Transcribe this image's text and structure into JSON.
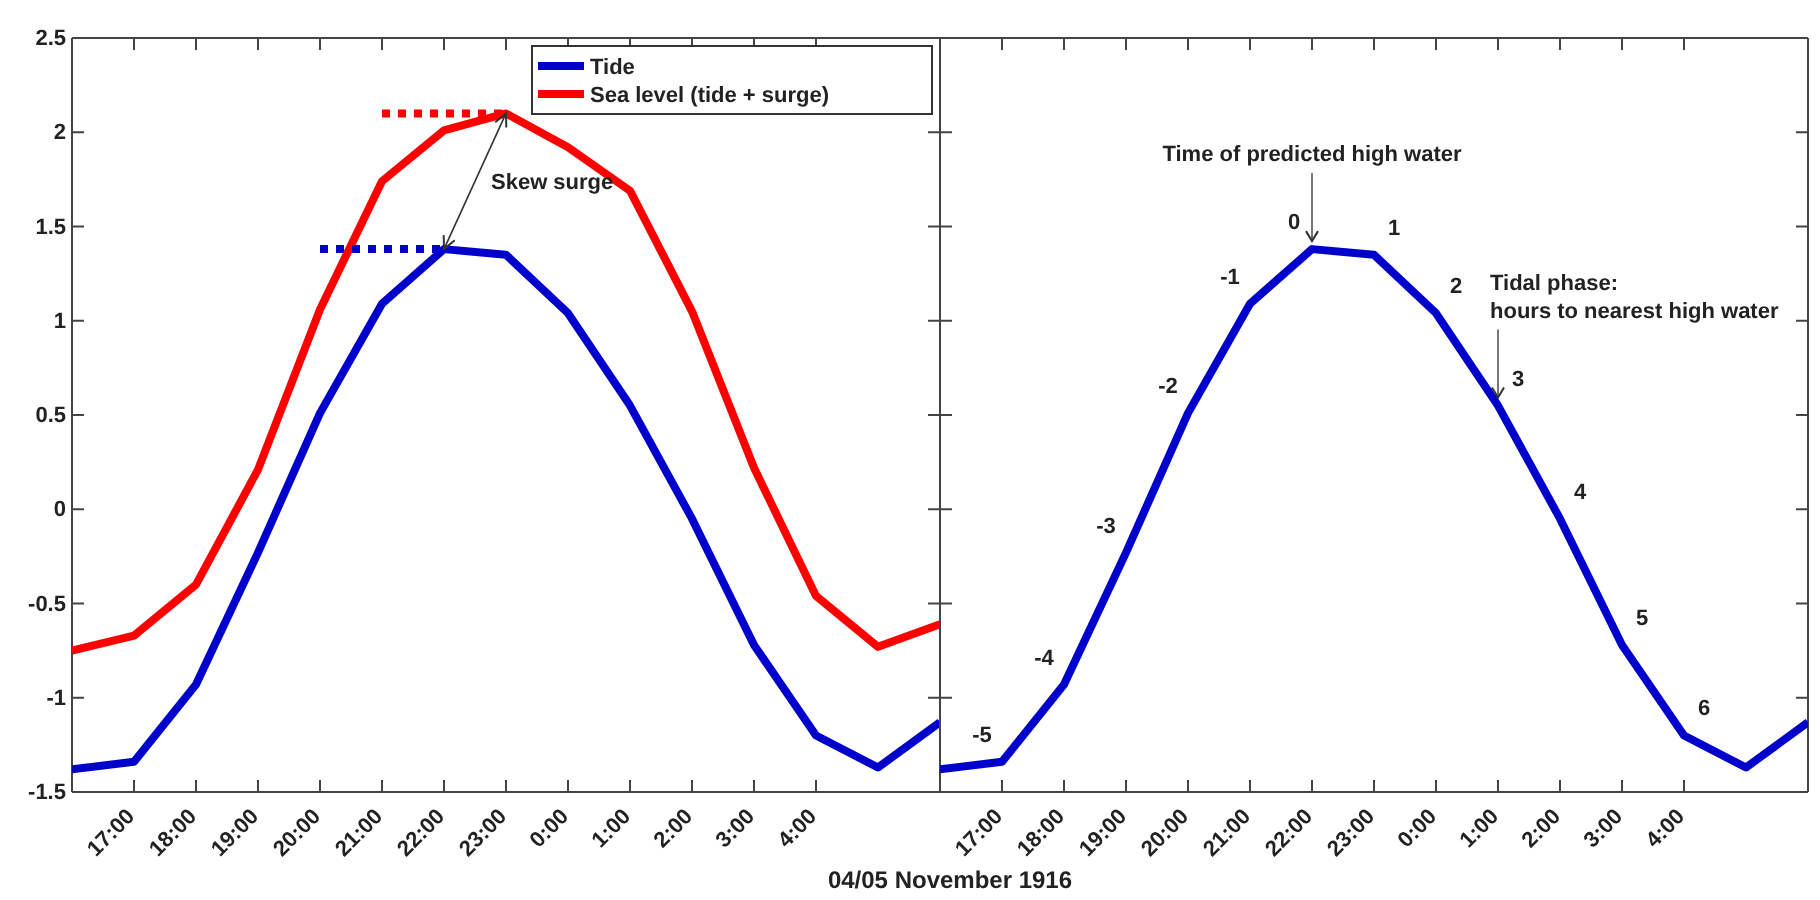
{
  "chart_data": [
    {
      "type": "line",
      "xlabel": "04/05 November 1916",
      "x": [
        "1916-11-04T16:00",
        "1916-11-04T17:00",
        "1916-11-04T18:00",
        "1916-11-04T19:00",
        "1916-11-04T20:00",
        "1916-11-04T21:00",
        "1916-11-04T22:00",
        "1916-11-04T23:00",
        "1916-11-05T00:00",
        "1916-11-05T01:00",
        "1916-11-05T02:00",
        "1916-11-05T03:00",
        "1916-11-05T04:00",
        "1916-11-05T05:00",
        "1916-11-05T06:00"
      ],
      "xlim": [
        "1916-11-04T16:00",
        "1916-11-05T06:00"
      ],
      "ylim": [
        -1.5,
        2.5
      ],
      "xticks": [
        {
          "value": "1916-11-04T17:00",
          "label": "17:00"
        },
        {
          "value": "1916-11-04T18:00",
          "label": "18:00"
        },
        {
          "value": "1916-11-04T19:00",
          "label": "19:00"
        },
        {
          "value": "1916-11-04T20:00",
          "label": "20:00"
        },
        {
          "value": "1916-11-04T21:00",
          "label": "21:00"
        },
        {
          "value": "1916-11-04T22:00",
          "label": "22:00"
        },
        {
          "value": "1916-11-04T23:00",
          "label": "23:00"
        },
        {
          "value": "1916-11-05T00:00",
          "label": "0:00"
        },
        {
          "value": "1916-11-05T01:00",
          "label": "1:00"
        },
        {
          "value": "1916-11-05T02:00",
          "label": "2:00"
        },
        {
          "value": "1916-11-05T03:00",
          "label": "3:00"
        },
        {
          "value": "1916-11-05T04:00",
          "label": "4:00"
        }
      ],
      "yticks": [
        -1.5,
        -1,
        -0.5,
        0,
        0.5,
        1,
        1.5,
        2,
        2.5
      ],
      "grid": false,
      "legend": "top right",
      "line_style": "solid",
      "marker": "none",
      "series": [
        {
          "name": "Tide",
          "color": "#0000cc",
          "values": [
            -1.38,
            -1.34,
            -0.93,
            -0.23,
            0.51,
            1.09,
            1.38,
            1.35,
            1.04,
            0.55,
            -0.05,
            -0.72,
            -1.2,
            -1.37,
            -1.13
          ]
        },
        {
          "name": "Sea level (tide + surge)",
          "color": "#ff0000",
          "values": [
            -0.75,
            -0.67,
            -0.4,
            0.21,
            1.06,
            1.74,
            2.01,
            2.1,
            1.92,
            1.69,
            1.05,
            0.22,
            -0.46,
            -0.73,
            -0.61
          ]
        },
        {
          "type": "line",
          "color": "#0000cc",
          "line_style": "dotted",
          "x": [
            "1916-11-04T20:00",
            "1916-11-04T22:00"
          ],
          "values": [
            1.38,
            1.38
          ]
        },
        {
          "type": "line",
          "color": "#ff0000",
          "line_style": "dotted",
          "x": [
            "1916-11-04T21:00",
            "1916-11-04T23:00"
          ],
          "values": [
            2.1,
            2.1
          ]
        }
      ],
      "annotations": [
        "Skew surge"
      ]
    },
    {
      "type": "line",
      "x": [
        "1916-11-04T16:00",
        "1916-11-04T17:00",
        "1916-11-04T18:00",
        "1916-11-04T19:00",
        "1916-11-04T20:00",
        "1916-11-04T21:00",
        "1916-11-04T22:00",
        "1916-11-04T23:00",
        "1916-11-05T00:00",
        "1916-11-05T01:00",
        "1916-11-05T02:00",
        "1916-11-05T03:00",
        "1916-11-05T04:00",
        "1916-11-05T05:00",
        "1916-11-05T06:00"
      ],
      "xlim": [
        "1916-11-04T16:00",
        "1916-11-05T06:00"
      ],
      "ylim": [
        -1.5,
        2.5
      ],
      "xticks": [
        {
          "value": "1916-11-04T17:00",
          "label": "17:00"
        },
        {
          "value": "1916-11-04T18:00",
          "label": "18:00"
        },
        {
          "value": "1916-11-04T19:00",
          "label": "19:00"
        },
        {
          "value": "1916-11-04T20:00",
          "label": "20:00"
        },
        {
          "value": "1916-11-04T21:00",
          "label": "21:00"
        },
        {
          "value": "1916-11-04T22:00",
          "label": "22:00"
        },
        {
          "value": "1916-11-04T23:00",
          "label": "23:00"
        },
        {
          "value": "1916-11-05T00:00",
          "label": "0:00"
        },
        {
          "value": "1916-11-05T01:00",
          "label": "1:00"
        },
        {
          "value": "1916-11-05T02:00",
          "label": "2:00"
        },
        {
          "value": "1916-11-05T03:00",
          "label": "3:00"
        },
        {
          "value": "1916-11-05T04:00",
          "label": "4:00"
        }
      ],
      "yticks": [
        -1.5,
        -1,
        -0.5,
        0,
        0.5,
        1,
        1.5,
        2,
        2.5
      ],
      "tick_labels": "x",
      "grid": false,
      "line_style": "solid",
      "marker": "none",
      "series": [
        {
          "color": "#0000cc",
          "values": [
            -1.38,
            -1.34,
            -0.93,
            -0.23,
            0.51,
            1.09,
            1.38,
            1.35,
            1.04,
            0.55,
            -0.05,
            -0.72,
            -1.2,
            -1.37,
            -1.13
          ]
        }
      ],
      "annotations": [
        {
          "text": "Time of predicted high water",
          "x": "1916-11-04T22:00",
          "y": 1.38
        },
        {
          "text": "Tidal phase:\nhours to nearest high water",
          "x": "1916-11-05T01:00",
          "y": 0.55
        },
        {
          "text": "-5",
          "x": "1916-11-04T17:00",
          "y": -1.34
        },
        {
          "text": "-4",
          "x": "1916-11-04T18:00",
          "y": -0.93
        },
        {
          "text": "-3",
          "x": "1916-11-04T19:00",
          "y": -0.23
        },
        {
          "text": "-2",
          "x": "1916-11-04T20:00",
          "y": 0.51
        },
        {
          "text": "-1",
          "x": "1916-11-04T21:00",
          "y": 1.09
        },
        {
          "text": "0",
          "x": "1916-11-04T22:00",
          "y": 1.38
        },
        {
          "text": "1",
          "x": "1916-11-04T23:00",
          "y": 1.35
        },
        {
          "text": "2",
          "x": "1916-11-05T00:00",
          "y": 1.04
        },
        {
          "text": "3",
          "x": "1916-11-05T01:00",
          "y": 0.55
        },
        {
          "text": "4",
          "x": "1916-11-05T02:00",
          "y": -0.05
        },
        {
          "text": "5",
          "x": "1916-11-05T03:00",
          "y": -0.72
        },
        {
          "text": "6",
          "x": "1916-11-05T04:00",
          "y": -1.2
        }
      ]
    }
  ]
}
